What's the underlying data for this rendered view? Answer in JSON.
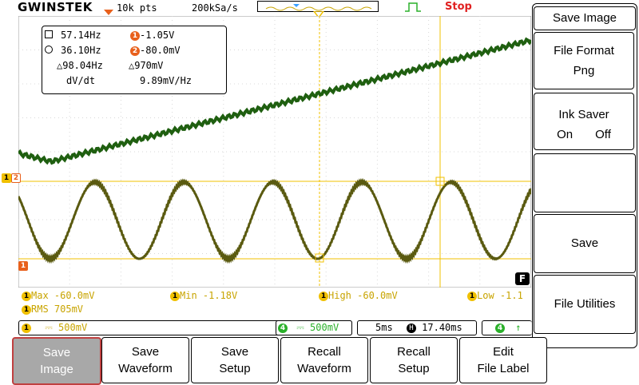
{
  "header": {
    "brand": "GWINSTEK",
    "record_length": "10k pts",
    "sample_rate": "200kSa/s",
    "run_state": "Stop"
  },
  "measurements": {
    "row1_left": "57.14Hz",
    "row1_right": "-1.05V",
    "row2_left": "36.10Hz",
    "row2_right": "-80.0mV",
    "row3_left": "△98.04Hz",
    "row3_right": "△970mV",
    "row4_left": "dV/dt",
    "row4_right": "9.89mV/Hz"
  },
  "channel_badges": {
    "ch1": "1",
    "ch2": "2",
    "ch4": "4",
    "f": "F"
  },
  "auto_measure": {
    "max": "Max -60.0mV",
    "min": "Min -1.18V",
    "high": "High -60.0mV",
    "low": "Low -1.1",
    "rms": "RMS 705mV"
  },
  "status": {
    "ch1_scale": "500mV",
    "ch4_scale": "500mV",
    "timebase": "5ms",
    "h_position": "17.40ms",
    "coupling_symbol": "⎓"
  },
  "right_menu": {
    "title": "Save Image",
    "file_format_label": "File Format",
    "file_format_value": "Png",
    "ink_saver_label": "Ink Saver",
    "ink_on": "On",
    "ink_off": "Off",
    "save": "Save",
    "file_utilities": "File Utilities"
  },
  "softkeys": [
    {
      "line1": "Save",
      "line2": "Image"
    },
    {
      "line1": "Save",
      "line2": "Waveform"
    },
    {
      "line1": "Save",
      "line2": "Setup"
    },
    {
      "line1": "Recall",
      "line2": "Waveform"
    },
    {
      "line1": "Recall",
      "line2": "Setup"
    },
    {
      "line1": "Edit",
      "line2": "File Label"
    }
  ],
  "colors": {
    "ch1_trace": "#5a5a10",
    "ch4_trace": "#1f5f10",
    "cursor": "#f0c000",
    "trigger_marker": "#e8601c",
    "stop": "#e02020",
    "grid": "#cfcfcf"
  }
}
